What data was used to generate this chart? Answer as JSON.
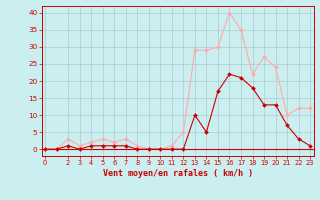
{
  "x": [
    0,
    1,
    2,
    3,
    4,
    5,
    6,
    7,
    8,
    9,
    10,
    11,
    12,
    13,
    14,
    15,
    16,
    17,
    18,
    19,
    20,
    21,
    22,
    23
  ],
  "rafales": [
    0,
    0,
    3,
    1,
    2,
    3,
    2,
    3,
    1,
    0,
    0,
    1,
    5,
    29,
    29,
    30,
    40,
    35,
    22,
    27,
    24,
    10,
    12,
    12
  ],
  "moyen": [
    0,
    0,
    1,
    0,
    1,
    1,
    1,
    1,
    0,
    0,
    0,
    0,
    0,
    10,
    5,
    17,
    22,
    21,
    18,
    13,
    13,
    7,
    3,
    1
  ],
  "bg_color": "#cbeef0",
  "grid_color": "#aacccc",
  "line_color_rafales": "#ffaaaa",
  "line_color_moyen": "#cc0000",
  "marker_color_rafales": "#ffaaaa",
  "marker_color_moyen": "#cc0000",
  "xlabel": "Vent moyen/en rafales ( km/h )",
  "xlabel_color": "#cc0000",
  "tick_color": "#cc0000",
  "axis_color": "#cc0000",
  "ylim": [
    -2,
    42
  ],
  "xlim": [
    -0.3,
    23.3
  ],
  "yticks": [
    0,
    5,
    10,
    15,
    20,
    25,
    30,
    35,
    40
  ],
  "xticks": [
    0,
    2,
    3,
    4,
    5,
    6,
    7,
    8,
    9,
    10,
    11,
    12,
    13,
    14,
    15,
    16,
    17,
    18,
    19,
    20,
    21,
    22,
    23
  ]
}
